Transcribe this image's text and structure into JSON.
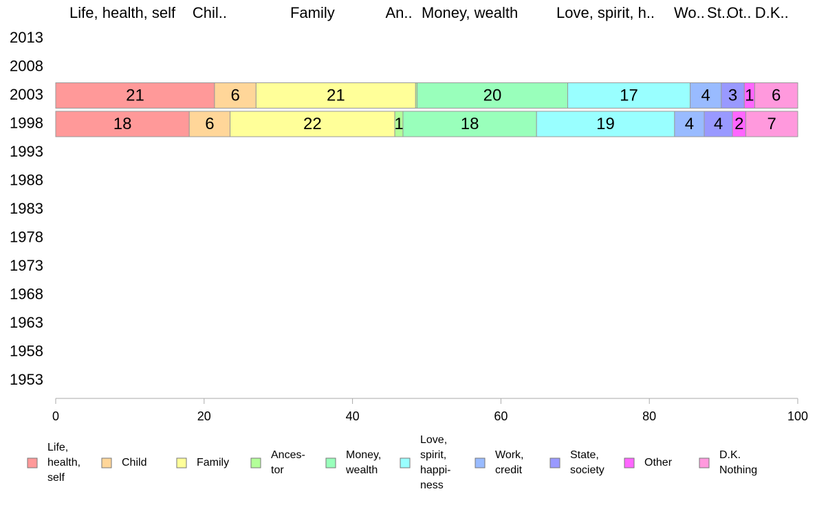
{
  "chart_data": {
    "type": "bar",
    "orientation": "horizontal",
    "stacked": true,
    "xlim": [
      0,
      100
    ],
    "x_ticks": [
      0,
      20,
      40,
      60,
      80,
      100
    ],
    "grid": false,
    "legend_position": "bottom",
    "years": [
      "2013",
      "2008",
      "2003",
      "1998",
      "1993",
      "1988",
      "1983",
      "1978",
      "1973",
      "1968",
      "1963",
      "1958",
      "1953"
    ],
    "column_headers": [
      "Life, health, self",
      "Chil..",
      "Family",
      "An..",
      "Money, wealth",
      "Love, spirit, h..",
      "Wo..",
      "St..",
      "Ot..",
      "D.K.."
    ],
    "series": [
      {
        "name": "Life, health, self",
        "legend_lines": [
          "Life,",
          "health,",
          "self"
        ],
        "color": "#ff9999"
      },
      {
        "name": "Child",
        "legend_lines": [
          "Child"
        ],
        "color": "#ffd699"
      },
      {
        "name": "Family",
        "legend_lines": [
          "Family"
        ],
        "color": "#ffff99"
      },
      {
        "name": "Ancestor",
        "legend_lines": [
          "Ances-",
          "tor"
        ],
        "color": "#b3ff99"
      },
      {
        "name": "Money, wealth",
        "legend_lines": [
          "Money,",
          "wealth"
        ],
        "color": "#99ffbb"
      },
      {
        "name": "Love, spirit, happiness",
        "legend_lines": [
          "Love,",
          "spirit,",
          "happi-",
          "ness"
        ],
        "color": "#99ffff"
      },
      {
        "name": "Work, credit",
        "legend_lines": [
          "Work,",
          "credit"
        ],
        "color": "#99bbff"
      },
      {
        "name": "State, society",
        "legend_lines": [
          "State,",
          "society"
        ],
        "color": "#9999ff"
      },
      {
        "name": "Other",
        "legend_lines": [
          "Other"
        ],
        "color": "#ff66ff"
      },
      {
        "name": "D.K. Nothing",
        "legend_lines": [
          "D.K.",
          "Nothing"
        ],
        "color": "#ff99dd"
      }
    ],
    "rows": [
      {
        "year": "2003",
        "values": [
          21.4,
          5.6,
          21.5,
          0.2,
          20.3,
          16.5,
          4.2,
          3.1,
          1.4,
          5.8
        ],
        "labels": [
          "21",
          "6",
          "21",
          "",
          "20",
          "17",
          "4",
          "3",
          "1",
          "6"
        ]
      },
      {
        "year": "1998",
        "values": [
          18.0,
          5.5,
          22.2,
          1.1,
          18.0,
          18.6,
          4.0,
          3.8,
          1.8,
          7.0
        ],
        "labels": [
          "18",
          "6",
          "22",
          "1",
          "18",
          "19",
          "4",
          "4",
          "2",
          "7"
        ]
      }
    ]
  }
}
